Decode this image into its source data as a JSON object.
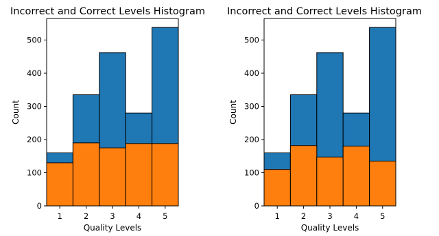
{
  "chart_data": [
    {
      "type": "bar",
      "stacking": "overlay",
      "title": "Incorrect and Correct Levels Histogram",
      "xlabel": "Quality Levels",
      "ylabel": "Count",
      "categories": [
        "1",
        "2",
        "3",
        "4",
        "5"
      ],
      "xlim": [
        0.5,
        5.5
      ],
      "ylim": [
        0,
        565
      ],
      "yticks": [
        0,
        100,
        200,
        300,
        400,
        500
      ],
      "grid": false,
      "series": [
        {
          "values": [
            160,
            335,
            462,
            280,
            538
          ],
          "color": "#1f77b4"
        },
        {
          "values": [
            130,
            190,
            175,
            188,
            188
          ],
          "color": "#ff7f0e"
        }
      ]
    },
    {
      "type": "bar",
      "stacking": "overlay",
      "title": "Incorrect and Correct Levels Histogram",
      "xlabel": "Quality Levels",
      "ylabel": "Count",
      "categories": [
        "1",
        "2",
        "3",
        "4",
        "5"
      ],
      "xlim": [
        0.5,
        5.5
      ],
      "ylim": [
        0,
        565
      ],
      "yticks": [
        0,
        100,
        200,
        300,
        400,
        500
      ],
      "grid": false,
      "series": [
        {
          "values": [
            160,
            335,
            462,
            280,
            538
          ],
          "color": "#1f77b4"
        },
        {
          "values": [
            110,
            182,
            147,
            180,
            135
          ],
          "color": "#ff7f0e"
        }
      ]
    }
  ]
}
